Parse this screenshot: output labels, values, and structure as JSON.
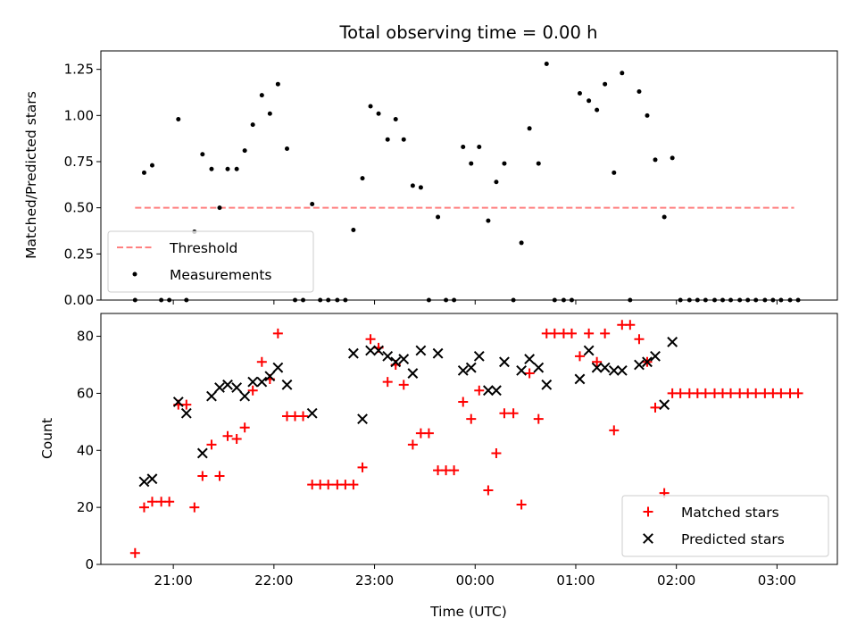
{
  "figure": {
    "title": "Total observing time = 0.00 h"
  },
  "chart_data": [
    {
      "type": "line",
      "title": "Total observing time = 0.00 h",
      "xlabel": "",
      "ylabel": "Matched/Predicted stars",
      "ylim": [
        0,
        1.35
      ],
      "yticks": [
        0.0,
        0.25,
        0.5,
        0.75,
        1.0,
        1.25
      ],
      "ytick_labels": [
        "0.00",
        "0.25",
        "0.50",
        "0.75",
        "1.00",
        "1.25"
      ],
      "xlim": [
        20.28,
        27.6
      ],
      "xticks": [
        21,
        22,
        23,
        24,
        25,
        26,
        27
      ],
      "xtick_labels": [
        "",
        "",
        "",
        "",
        "",
        "",
        ""
      ],
      "legend": {
        "placement": "lower-left",
        "entries": [
          "Threshold",
          "Measurements"
        ]
      },
      "series": [
        {
          "name": "Threshold",
          "style": "dashed-line",
          "color": "#ff8080",
          "x": [
            20.62,
            27.17
          ],
          "values": [
            0.5,
            0.5
          ]
        },
        {
          "name": "Measurements",
          "style": "dots",
          "color": "#000000",
          "x": [
            20.62,
            20.71,
            20.79,
            20.88,
            20.96,
            21.05,
            21.13,
            21.21,
            21.29,
            21.38,
            21.46,
            21.54,
            21.63,
            21.71,
            21.79,
            21.88,
            21.96,
            22.04,
            22.13,
            22.21,
            22.29,
            22.38,
            22.46,
            22.54,
            22.63,
            22.71,
            22.79,
            22.88,
            22.96,
            23.04,
            23.13,
            23.21,
            23.29,
            23.38,
            23.46,
            23.54,
            23.63,
            23.71,
            23.79,
            23.88,
            23.96,
            24.04,
            24.13,
            24.21,
            24.29,
            24.38,
            24.46,
            24.54,
            24.63,
            24.71,
            24.79,
            24.88,
            24.96,
            25.04,
            25.13,
            25.21,
            25.29,
            25.38,
            25.46,
            25.54,
            25.63,
            25.71,
            25.79,
            25.88,
            25.96,
            26.04,
            26.13,
            26.21,
            26.29,
            26.38,
            26.46,
            26.54,
            26.63,
            26.71,
            26.79,
            26.88,
            26.96,
            27.04,
            27.13,
            27.21
          ],
          "values": [
            0.0,
            0.69,
            0.73,
            0.0,
            0.0,
            0.98,
            0.0,
            0.37,
            0.79,
            0.71,
            0.5,
            0.71,
            0.71,
            0.81,
            0.95,
            1.11,
            1.01,
            1.17,
            0.82,
            0.0,
            0.0,
            0.52,
            0.0,
            0.0,
            0.0,
            0.0,
            0.38,
            0.66,
            1.05,
            1.01,
            0.87,
            0.98,
            0.87,
            0.62,
            0.61,
            0.0,
            0.45,
            0.0,
            0.0,
            0.83,
            0.74,
            0.83,
            0.43,
            0.64,
            0.74,
            0.0,
            0.31,
            0.93,
            0.74,
            1.28,
            0.0,
            0.0,
            0.0,
            1.12,
            1.08,
            1.03,
            1.17,
            0.69,
            1.23,
            0.0,
            1.13,
            1.0,
            0.76,
            0.45,
            0.77,
            0.0,
            0.0,
            0.0,
            0.0,
            0.0,
            0.0,
            0.0,
            0.0,
            0.0,
            0.0,
            0.0,
            0.0,
            0.0,
            0.0,
            0.0
          ]
        }
      ]
    },
    {
      "type": "scatter",
      "title": "",
      "xlabel": "Time (UTC)",
      "ylabel": "Count",
      "ylim": [
        0,
        88
      ],
      "yticks": [
        0,
        20,
        40,
        60,
        80
      ],
      "ytick_labels": [
        "0",
        "20",
        "40",
        "60",
        "80"
      ],
      "xlim": [
        20.28,
        27.6
      ],
      "xticks": [
        21,
        22,
        23,
        24,
        25,
        26,
        27
      ],
      "xtick_labels": [
        "21:00",
        "22:00",
        "23:00",
        "00:00",
        "01:00",
        "02:00",
        "03:00"
      ],
      "legend": {
        "placement": "lower-right",
        "entries": [
          "Matched stars",
          "Predicted stars"
        ]
      },
      "series": [
        {
          "name": "Matched stars",
          "marker": "plus",
          "color": "#ff0000",
          "x": [
            20.62,
            20.71,
            20.79,
            20.88,
            20.96,
            21.05,
            21.13,
            21.21,
            21.29,
            21.38,
            21.46,
            21.54,
            21.63,
            21.71,
            21.79,
            21.88,
            21.96,
            22.04,
            22.13,
            22.21,
            22.29,
            22.38,
            22.46,
            22.54,
            22.63,
            22.71,
            22.79,
            22.88,
            22.96,
            23.04,
            23.13,
            23.21,
            23.29,
            23.38,
            23.46,
            23.54,
            23.63,
            23.71,
            23.79,
            23.88,
            23.96,
            24.04,
            24.13,
            24.21,
            24.29,
            24.38,
            24.46,
            24.54,
            24.63,
            24.71,
            24.79,
            24.88,
            24.96,
            25.04,
            25.13,
            25.21,
            25.29,
            25.38,
            25.46,
            25.54,
            25.63,
            25.71,
            25.79,
            25.88,
            25.96,
            26.04,
            26.13,
            26.21,
            26.29,
            26.38,
            26.46,
            26.54,
            26.63,
            26.71,
            26.79,
            26.88,
            26.96,
            27.04,
            27.13,
            27.21
          ],
          "values": [
            4,
            20,
            22,
            22,
            22,
            56,
            56,
            20,
            31,
            42,
            31,
            45,
            44,
            48,
            61,
            71,
            65,
            81,
            52,
            52,
            52,
            28,
            28,
            28,
            28,
            28,
            28,
            34,
            79,
            76,
            64,
            70,
            63,
            42,
            46,
            46,
            33,
            33,
            33,
            57,
            51,
            61,
            26,
            39,
            53,
            53,
            21,
            67,
            51,
            81,
            81,
            81,
            81,
            73,
            81,
            71,
            81,
            47,
            84,
            84,
            79,
            71,
            55,
            25,
            60,
            60,
            60,
            60,
            60,
            60,
            60,
            60,
            60,
            60,
            60,
            60,
            60,
            60,
            60,
            60
          ]
        },
        {
          "name": "Predicted stars",
          "marker": "x",
          "color": "#000000",
          "x": [
            20.71,
            20.79,
            21.05,
            21.13,
            21.29,
            21.38,
            21.46,
            21.54,
            21.63,
            21.71,
            21.79,
            21.88,
            21.96,
            22.04,
            22.13,
            22.38,
            22.79,
            22.88,
            22.96,
            23.04,
            23.13,
            23.21,
            23.29,
            23.38,
            23.46,
            23.63,
            23.88,
            23.96,
            24.04,
            24.13,
            24.21,
            24.29,
            24.46,
            24.54,
            24.63,
            24.71,
            25.04,
            25.13,
            25.21,
            25.29,
            25.38,
            25.46,
            25.63,
            25.71,
            25.79,
            25.88,
            25.96
          ],
          "values": [
            29,
            30,
            57,
            53,
            39,
            59,
            62,
            63,
            62,
            59,
            64,
            64,
            66,
            69,
            63,
            53,
            74,
            51,
            75,
            75,
            73,
            71,
            72,
            67,
            75,
            74,
            68,
            69,
            73,
            61,
            61,
            71,
            68,
            72,
            69,
            63,
            65,
            75,
            69,
            69,
            68,
            68,
            70,
            71,
            73,
            56,
            78
          ]
        }
      ]
    }
  ]
}
